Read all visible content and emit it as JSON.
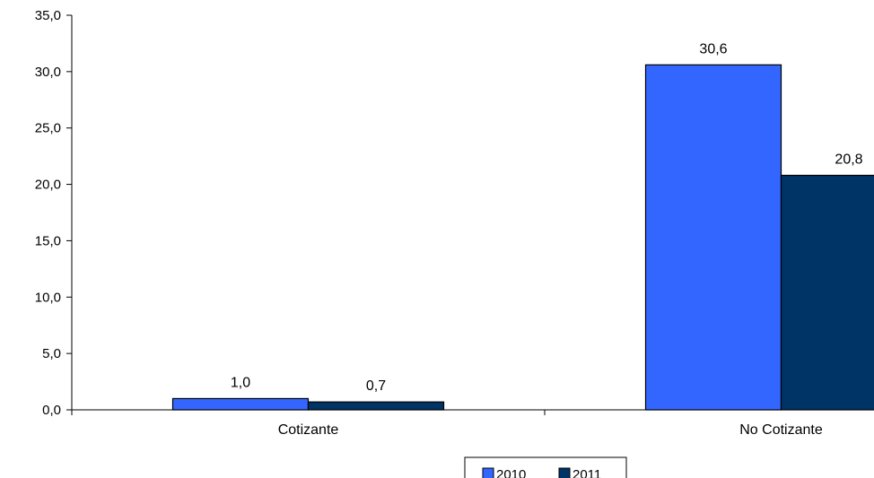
{
  "chart_data": {
    "type": "bar",
    "title": "",
    "xlabel": "",
    "ylabel": "",
    "categories": [
      "Cotizante",
      "No Cotizante"
    ],
    "series": [
      {
        "name": "2010",
        "values": [
          1.0,
          30.6
        ],
        "labels": [
          "1,0",
          "30,6"
        ],
        "color": "#3366ff"
      },
      {
        "name": "2011",
        "values": [
          0.7,
          20.8
        ],
        "labels": [
          "0,7",
          "20,8"
        ],
        "color": "#003366"
      }
    ],
    "ylim": [
      0,
      35
    ],
    "y_ticks": [
      {
        "value": 0,
        "label": "0,0"
      },
      {
        "value": 5,
        "label": "5,0"
      },
      {
        "value": 10,
        "label": "10,0"
      },
      {
        "value": 15,
        "label": "15,0"
      },
      {
        "value": 20,
        "label": "20,0"
      },
      {
        "value": 25,
        "label": "25,0"
      },
      {
        "value": 30,
        "label": "30,0"
      },
      {
        "value": 35,
        "label": "35,0"
      }
    ],
    "grid": false,
    "legend_position": "bottom"
  }
}
